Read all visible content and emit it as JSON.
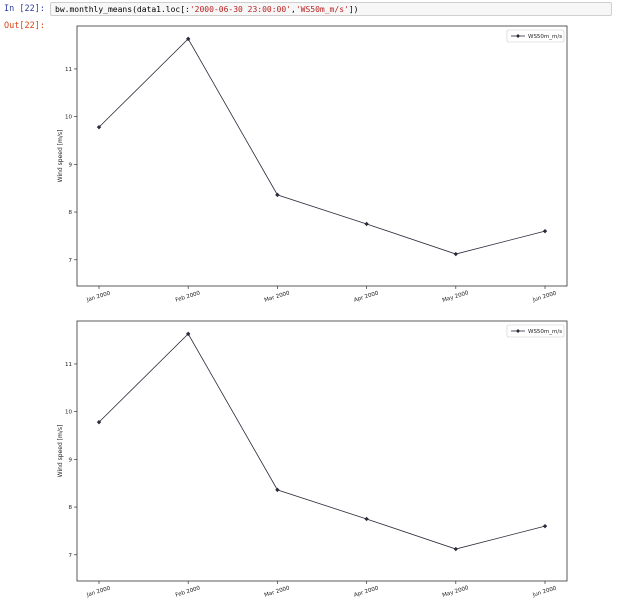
{
  "cell": {
    "in_prompt": "In [22]:",
    "out_prompt": "Out[22]:",
    "code_prefix": "bw.monthly_means(data1.loc[:",
    "code_arg1": "'2000-06-30 23:00:00'",
    "code_sep": ",",
    "code_arg2": "'WS50m_m/s'",
    "code_suffix": "])"
  },
  "colors": {
    "line": "#2b2b3b",
    "marker": "#2b2b3b",
    "prompt_in": "#303f9f",
    "prompt_out": "#d84315",
    "string": "#ba2121"
  },
  "chart_data": [
    {
      "type": "line",
      "categories": [
        "Jan 2000",
        "Feb 2000",
        "Mar 2000",
        "Apr 2000",
        "May 2000",
        "Jun 2000"
      ],
      "series": [
        {
          "name": "WS50m_m/s",
          "values": [
            9.78,
            11.63,
            8.36,
            7.75,
            7.12,
            7.6
          ]
        }
      ],
      "xlabel": "",
      "ylabel": "Wind speed [m/s]",
      "ylim": [
        6.45,
        11.9
      ],
      "yticks": [
        7,
        8,
        9,
        10,
        11
      ],
      "grid": false,
      "legend": "top-right",
      "marker": "diamond"
    },
    {
      "type": "line",
      "categories": [
        "Jan 2000",
        "Feb 2000",
        "Mar 2000",
        "Apr 2000",
        "May 2000",
        "Jun 2000"
      ],
      "series": [
        {
          "name": "WS50m_m/s",
          "values": [
            9.78,
            11.63,
            8.36,
            7.75,
            7.12,
            7.6
          ]
        }
      ],
      "xlabel": "",
      "ylabel": "Wind speed [m/s]",
      "ylim": [
        6.45,
        11.9
      ],
      "yticks": [
        7,
        8,
        9,
        10,
        11
      ],
      "grid": false,
      "legend": "top-right",
      "marker": "diamond"
    }
  ]
}
